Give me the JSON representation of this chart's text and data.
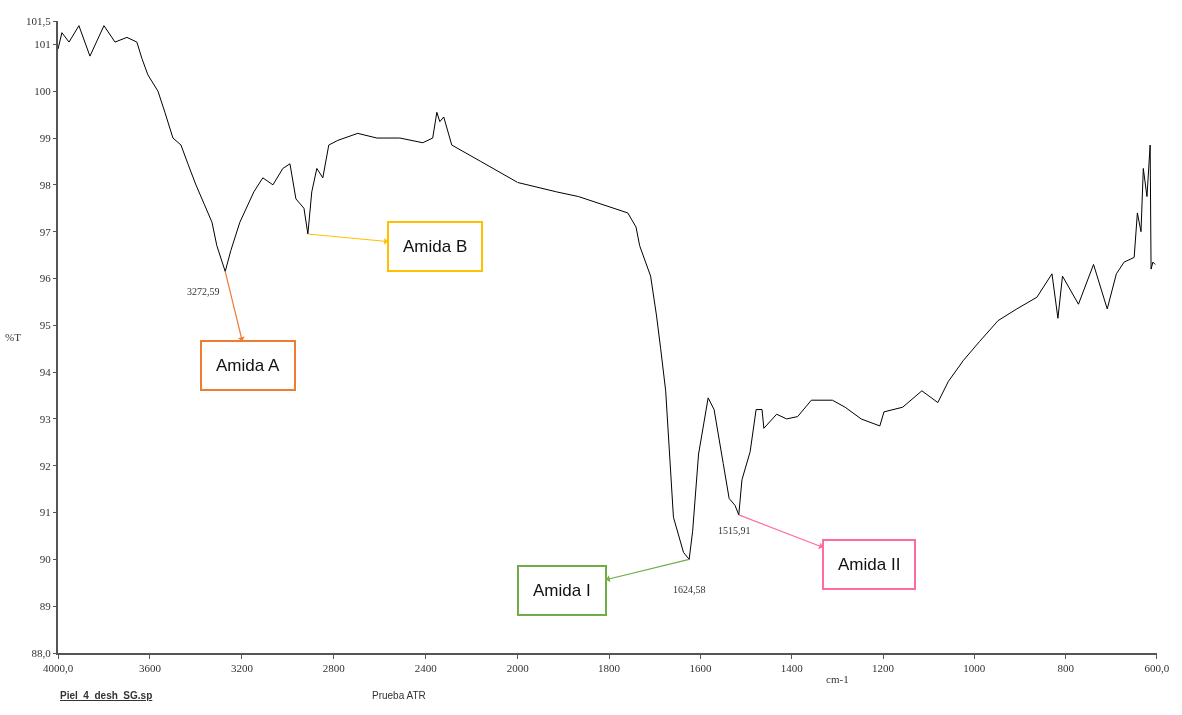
{
  "chart_data": [
    {
      "type": "line",
      "ylabel": "%T",
      "x": [
        4000,
        3983,
        3952,
        3909,
        3861,
        3800,
        3752,
        3700,
        3657,
        3635,
        3609,
        3565,
        3535,
        3500,
        3465,
        3435,
        3400,
        3365,
        3330,
        3309,
        3272.59,
        3248,
        3209,
        3148,
        3109,
        3065,
        3022,
        2991,
        2965,
        2930,
        2913,
        2896,
        2874,
        2848,
        2822,
        2783,
        2696,
        2613,
        2513,
        2413,
        2370,
        2352,
        2339,
        2322,
        2287,
        2161,
        2000
      ],
      "series": [
        {
          "color": "#000000",
          "values": [
            100.9,
            101.25,
            101.05,
            101.4,
            100.75,
            101.4,
            101.05,
            101.15,
            101.05,
            100.7,
            100.35,
            100.0,
            99.55,
            99.0,
            98.85,
            98.45,
            98.0,
            97.6,
            97.2,
            96.7,
            96.15,
            96.6,
            97.2,
            97.85,
            98.15,
            98.0,
            98.35,
            98.45,
            97.7,
            97.5,
            96.95,
            97.85,
            98.35,
            98.15,
            98.85,
            98.95,
            99.1,
            99.0,
            99.0,
            98.9,
            99.0,
            99.55,
            99.35,
            99.45,
            98.85,
            98.5,
            98.05
          ]
        }
      ],
      "xlim": [
        4000,
        2000
      ],
      "xticks": [
        {
          "value": 4000,
          "label": "4000,0"
        },
        3600,
        3200,
        2800,
        2400,
        2000
      ],
      "ylim": [
        88,
        101.5
      ],
      "yticks": [
        {
          "value": 88,
          "label": "88,0"
        },
        89,
        90,
        91,
        92,
        93,
        94,
        95,
        96,
        97,
        98,
        99,
        100,
        101,
        {
          "value": 101.5,
          "label": "101,5"
        }
      ],
      "marker": "none",
      "line_style": "solid",
      "annotations": [
        {
          "text": "3272,59",
          "x": 3272.59,
          "y": 96.15
        },
        {
          "text": "Amida A",
          "x": 3272.59,
          "y": 96.15
        },
        {
          "text": "Amida B",
          "x": 2913,
          "y": 96.95
        },
        "Piel_4_desh_SG.sp",
        "Prueba ATR"
      ]
    },
    {
      "type": "line",
      "xlabel": "cm-1",
      "x": [
        2000,
        1915,
        1867,
        1759,
        1741,
        1733,
        1709,
        1696,
        1687,
        1676,
        1659,
        1637,
        1624.58,
        1617,
        1604,
        1583,
        1570,
        1550,
        1537,
        1524,
        1515.91,
        1509,
        1491,
        1478,
        1465,
        1461,
        1433,
        1411,
        1387,
        1357,
        1311,
        1283,
        1248,
        1207,
        1198,
        1157,
        1115,
        1080,
        1057,
        1024,
        989,
        948,
        907,
        863,
        830,
        817,
        807,
        772,
        739,
        709,
        689,
        672,
        650,
        643,
        635,
        630,
        622,
        615,
        613,
        609,
        604
      ],
      "series": [
        {
          "color": "#000000",
          "values": [
            98.05,
            97.85,
            97.75,
            97.4,
            97.1,
            96.7,
            96.05,
            95.2,
            94.5,
            93.6,
            90.9,
            90.15,
            90.0,
            90.6,
            92.25,
            93.45,
            93.2,
            92.05,
            91.3,
            91.15,
            90.95,
            91.7,
            92.3,
            93.2,
            93.2,
            92.8,
            93.1,
            93.0,
            93.05,
            93.4,
            93.4,
            93.25,
            93.0,
            92.85,
            93.15,
            93.25,
            93.6,
            93.35,
            93.8,
            94.25,
            94.65,
            95.1,
            95.35,
            95.6,
            96.1,
            95.15,
            96.05,
            95.45,
            96.3,
            95.35,
            96.1,
            96.35,
            96.45,
            97.4,
            97.0,
            98.35,
            97.75,
            98.85,
            96.2,
            96.35,
            96.3
          ]
        }
      ],
      "xlim": [
        2000,
        600
      ],
      "xticks": [
        1800,
        1600,
        1400,
        1200,
        1000,
        800,
        {
          "value": 600,
          "label": "600,0"
        }
      ],
      "ylim": [
        88,
        101.5
      ],
      "tick_labels": "x",
      "marker": "none",
      "line_style": "solid",
      "annotations": [
        {
          "text": "1624,58",
          "x": 1624.58,
          "y": 90.0
        },
        {
          "text": "1515,91",
          "x": 1515.91,
          "y": 90.95
        },
        {
          "text": "Amida I",
          "x": 1624.58,
          "y": 90.0
        },
        {
          "text": "Amida II",
          "x": 1515.91,
          "y": 90.95
        }
      ]
    }
  ]
}
